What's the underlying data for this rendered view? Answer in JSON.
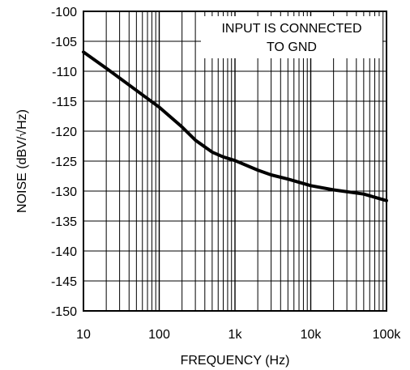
{
  "chart_data": {
    "type": "line",
    "title": "",
    "xlabel": "FREQUENCY (Hz)",
    "ylabel": "NOISE (dBV/√Hz)",
    "x_scale": "log",
    "xlim": [
      10,
      100000
    ],
    "ylim": [
      -150,
      -100
    ],
    "grid": true,
    "x_ticks": [
      10,
      100,
      1000,
      10000,
      100000
    ],
    "x_tick_labels": [
      "10",
      "100",
      "1k",
      "10k",
      "100k"
    ],
    "y_ticks": [
      -100,
      -105,
      -110,
      -115,
      -120,
      -125,
      -130,
      -135,
      -140,
      -145,
      -150
    ],
    "y_tick_labels": [
      "-100",
      "-105",
      "-110",
      "-115",
      "-120",
      "-125",
      "-130",
      "-135",
      "-140",
      "-145",
      "-150"
    ],
    "annotation": [
      "INPUT IS CONNECTED",
      "TO GND"
    ],
    "series": [
      {
        "x": [
          10,
          20,
          50,
          100,
          200,
          300,
          500,
          700,
          1000,
          2000,
          3000,
          5000,
          10000,
          20000,
          50000,
          100000
        ],
        "values": [
          -106.8,
          -109.5,
          -113.2,
          -116.0,
          -119.3,
          -121.5,
          -123.5,
          -124.3,
          -124.9,
          -126.5,
          -127.3,
          -128.0,
          -129.1,
          -129.8,
          -130.5,
          -131.6
        ]
      }
    ]
  },
  "colors": {
    "line": "#000000",
    "grid": "#000000",
    "background": "#ffffff"
  }
}
